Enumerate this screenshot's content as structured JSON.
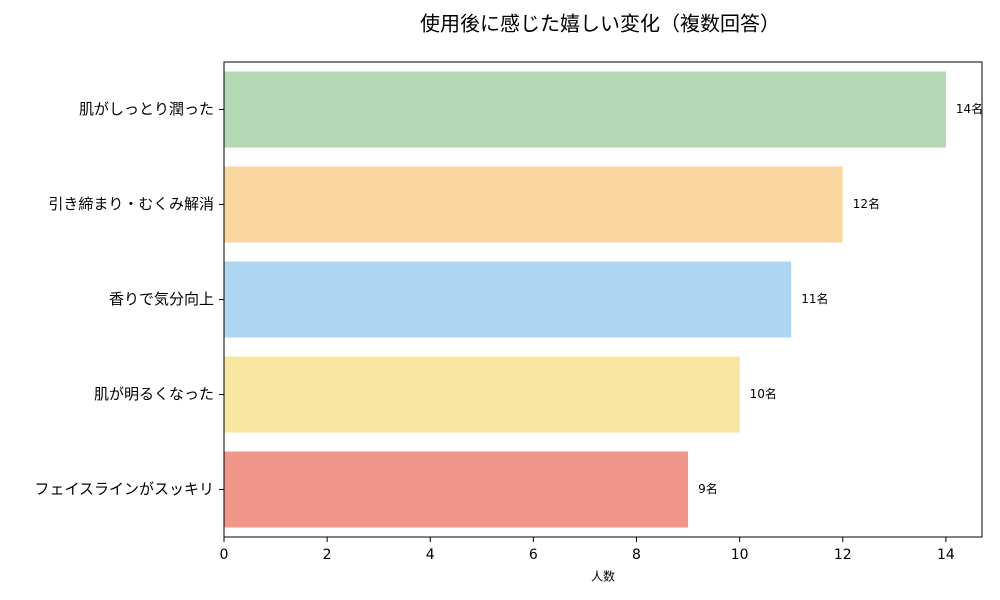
{
  "chart_data": {
    "type": "barh",
    "title": "使用後に感じた嬉しい変化（複数回答）",
    "xlabel": "人数",
    "categories": [
      "肌がしっとり潤った",
      "引き締まり・むくみ解消",
      "香りで気分向上",
      "肌が明るくなった",
      "フェイスラインがスッキリ"
    ],
    "values": [
      14,
      12,
      11,
      10,
      9
    ],
    "value_labels": [
      "14名",
      "12名",
      "11名",
      "10名",
      "9名"
    ],
    "colors": [
      "#b3d8b3",
      "#fad6a1",
      "#aed6f0",
      "#f8e6a0",
      "#f1968a"
    ],
    "xlim": [
      0,
      14.7
    ],
    "xticks": [
      0,
      2,
      4,
      6,
      8,
      10,
      12,
      14
    ]
  }
}
